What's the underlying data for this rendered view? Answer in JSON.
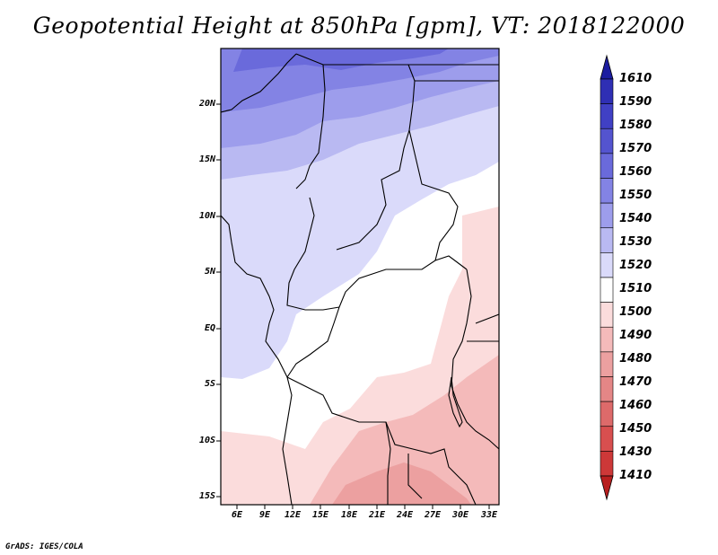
{
  "title": "Geopotential Height at 850hPa [gpm], VT: 2018122000",
  "credit": "GrADS: IGES/COLA",
  "latitude_labels": [
    "20N",
    "15N",
    "10N",
    "5N",
    "EQ",
    "5S",
    "10S",
    "15S"
  ],
  "longitude_labels": [
    "6E",
    "9E",
    "12E",
    "15E",
    "18E",
    "21E",
    "24E",
    "27E",
    "30E",
    "33E"
  ],
  "colorbar": {
    "levels": [
      "1610",
      "1590",
      "1580",
      "1570",
      "1560",
      "1550",
      "1540",
      "1530",
      "1520",
      "1510",
      "1500",
      "1490",
      "1480",
      "1470",
      "1460",
      "1450",
      "1430",
      "1410"
    ],
    "colors": [
      "#1c1da0",
      "#2f2fb4",
      "#4040c4",
      "#5454cf",
      "#6a6adb",
      "#8383e4",
      "#9d9dec",
      "#b9b9f2",
      "#dadafa",
      "#ffffff",
      "#fbdcdc",
      "#f4baba",
      "#eca0a0",
      "#e48686",
      "#dd6a6a",
      "#d84f4f",
      "#cd3838",
      "#b81f1f"
    ]
  }
}
